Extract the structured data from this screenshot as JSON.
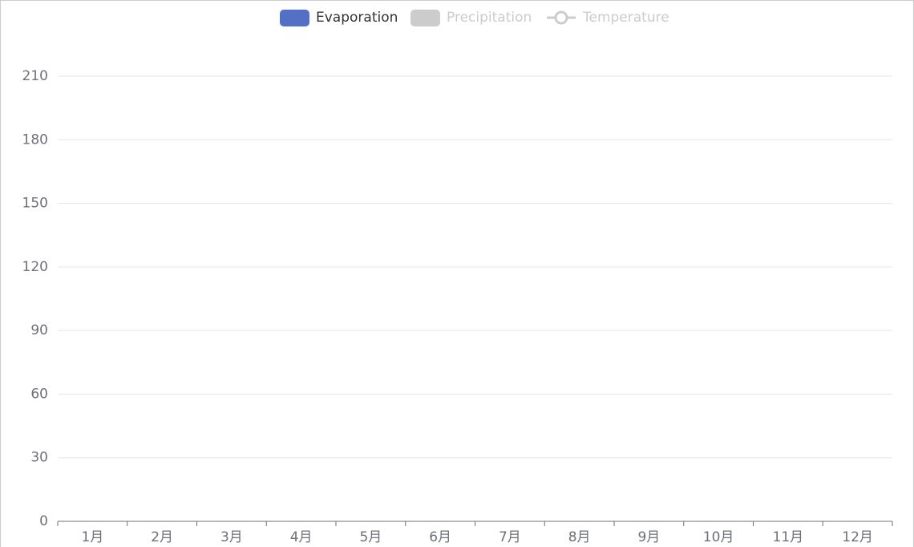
{
  "chart_data": {
    "type": "bar",
    "categories": [
      "1月",
      "2月",
      "3月",
      "4月",
      "5月",
      "6月",
      "7月",
      "8月",
      "9月",
      "10月",
      "11月",
      "12月"
    ],
    "series": [
      {
        "name": "Evaporation",
        "type": "bar",
        "color": "#5470c6",
        "selected": true
      },
      {
        "name": "Precipitation",
        "type": "bar",
        "color": "#91cc75",
        "selected": false
      },
      {
        "name": "Temperature",
        "type": "line",
        "color": "#fac858",
        "selected": false
      }
    ],
    "legend": {
      "position": "top",
      "inactive_color": "#cccccc"
    },
    "ylim": [
      0,
      210
    ],
    "yticks": [
      0,
      30,
      60,
      90,
      120,
      150,
      180,
      210
    ],
    "grid": true
  }
}
